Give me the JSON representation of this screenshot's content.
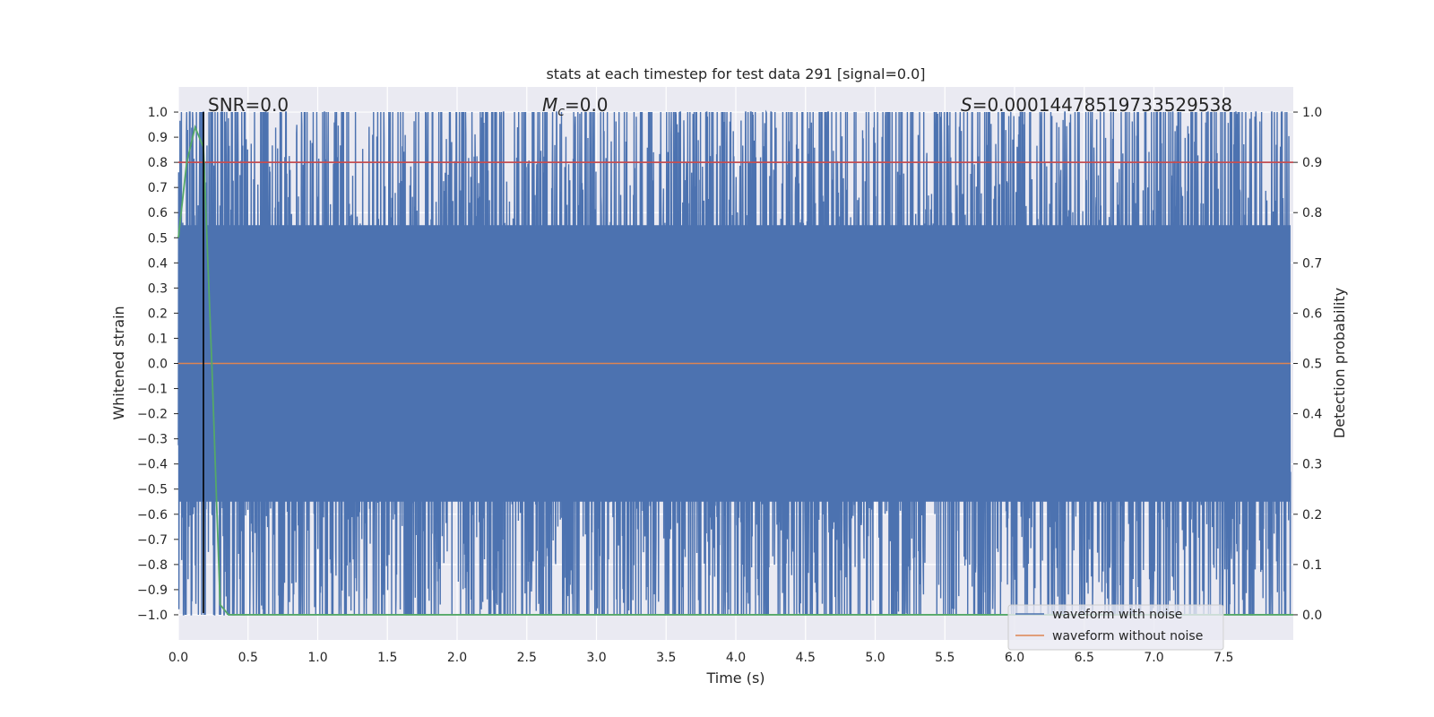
{
  "chart_data": {
    "type": "line",
    "title": "stats at each timestep for test data 291 [signal=0.0]",
    "xlabel": "Time (s)",
    "ylabel_left": "Whitened strain",
    "ylabel_right": "Detection probability",
    "xlim": [
      0.0,
      8.0
    ],
    "ylim_left": [
      -1.1,
      1.1
    ],
    "ylim_right": [
      -0.05,
      1.05
    ],
    "x_ticks": [
      "0.0",
      "0.5",
      "1.0",
      "1.5",
      "2.0",
      "2.5",
      "3.0",
      "3.5",
      "4.0",
      "4.5",
      "5.0",
      "5.5",
      "6.0",
      "6.5",
      "7.0",
      "7.5"
    ],
    "y_left_ticks": [
      "1.0",
      "0.9",
      "0.8",
      "0.7",
      "0.6",
      "0.5",
      "0.4",
      "0.3",
      "0.2",
      "0.1",
      "0.0",
      "−0.1",
      "−0.2",
      "−0.3",
      "−0.4",
      "−0.5",
      "−0.6",
      "−0.7",
      "−0.8",
      "−0.9",
      "−1.0"
    ],
    "y_right_ticks": [
      "1.0",
      "0.9",
      "0.8",
      "0.7",
      "0.6",
      "0.5",
      "0.4",
      "0.3",
      "0.2",
      "0.1",
      "0.0"
    ],
    "grid": true,
    "annotations": {
      "snr": "SNR=0.0",
      "mc_symbol": "M",
      "mc_sub": "c",
      "mc_value": "=0.0",
      "s_symbol": "S",
      "s_value": "=0.00014478519733529538"
    },
    "series": [
      {
        "name": "waveform with noise",
        "color": "#4c72b0",
        "axis": "left",
        "description_values": {
          "approx_range": [
            -1.0,
            1.0
          ],
          "sampling": "dense noise across 0–8 s"
        }
      },
      {
        "name": "waveform without noise",
        "color": "#dd8452",
        "axis": "left",
        "x": [
          0.0,
          8.0
        ],
        "values": [
          0.0,
          0.0
        ]
      },
      {
        "name": "",
        "color": "#55a868",
        "axis": "right",
        "x": [
          0.0,
          0.06,
          0.12,
          0.18,
          0.24,
          0.3,
          0.36,
          8.0
        ],
        "values": [
          0.75,
          0.9,
          0.97,
          0.93,
          0.5,
          0.02,
          0.0,
          0.0
        ]
      },
      {
        "name": "",
        "color": "#c44e52",
        "axis": "right",
        "x": [
          0.0,
          8.0
        ],
        "values": [
          0.9,
          0.9
        ]
      }
    ],
    "vline": {
      "x": 0.18,
      "color": "#000000"
    },
    "legend": {
      "placement": "lower-right",
      "entries": [
        "waveform with noise",
        "waveform without noise"
      ]
    }
  }
}
